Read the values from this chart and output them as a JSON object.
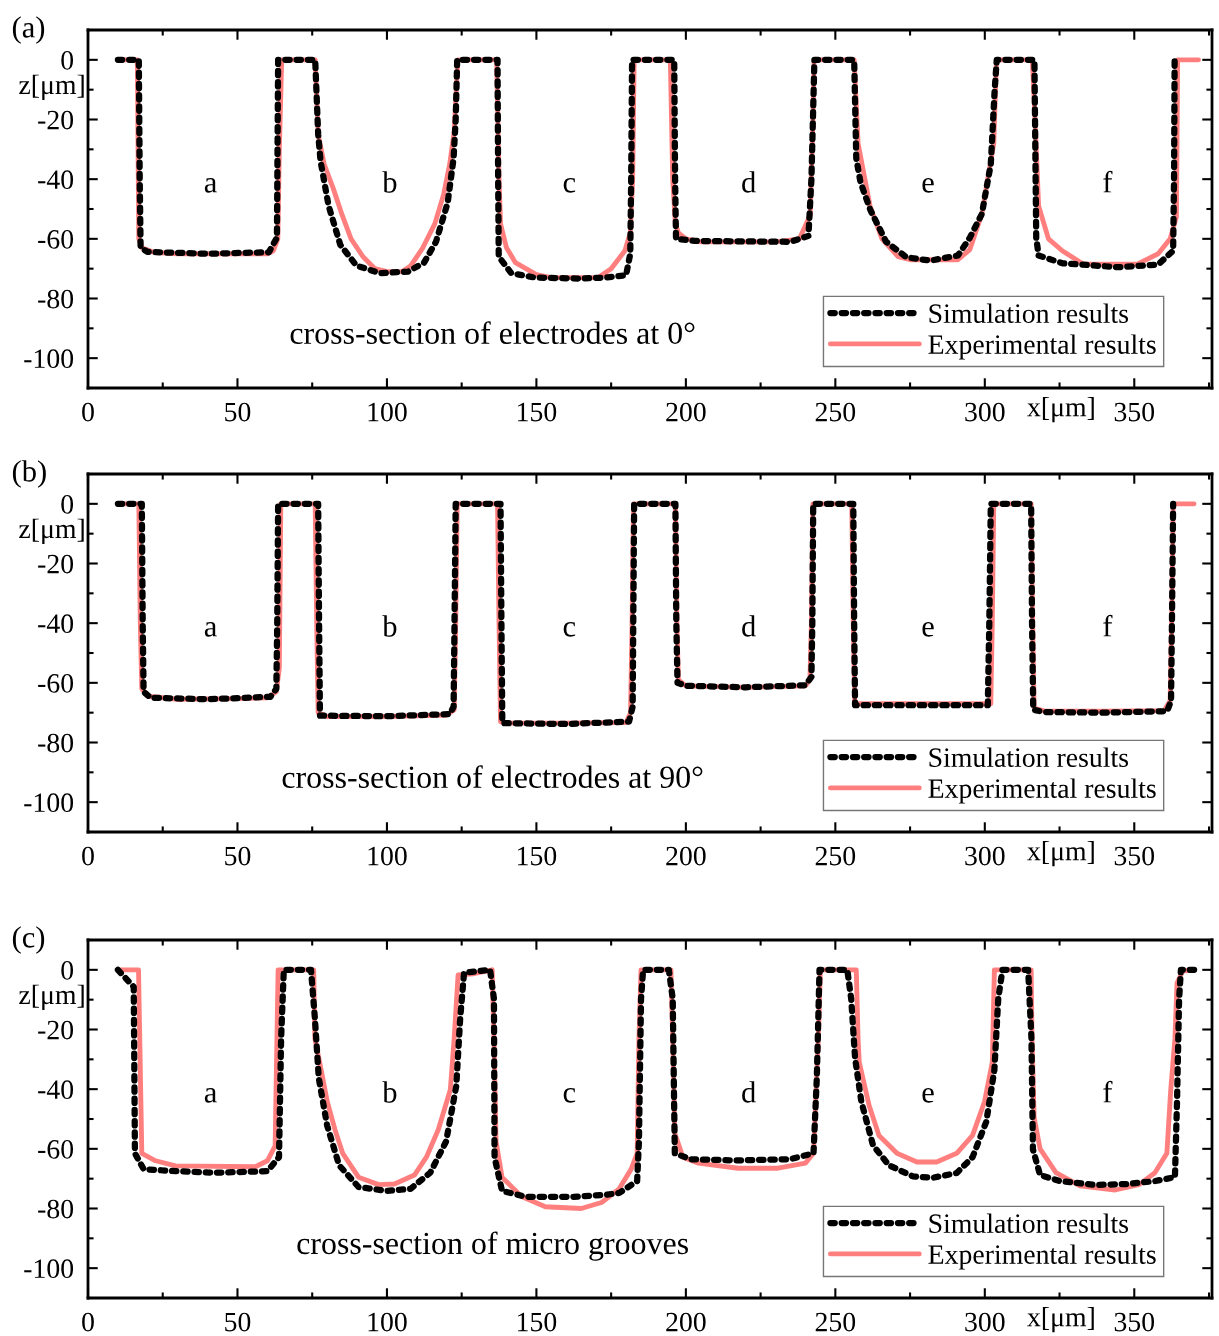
{
  "chart_data": [
    {
      "type": "line",
      "title": "(a)",
      "xlabel": "x[μm]",
      "ylabel": "z[μm]",
      "xlim": [
        0,
        376
      ],
      "ylim": [
        -110,
        10
      ],
      "xticks": [
        0,
        50,
        100,
        150,
        200,
        250,
        300,
        350
      ],
      "yticks": [
        0,
        -20,
        -40,
        -60,
        -80,
        -100
      ],
      "grid": false,
      "legend": "bottom right",
      "annotations": [
        "cross-section of electrodes at 0°",
        "a",
        "b",
        "c",
        "d",
        "e",
        "f"
      ],
      "series": [
        {
          "name": "Simulation results",
          "color": "#000000",
          "line_style": "dotted",
          "x": [
            10,
            17,
            17.3,
            17.6,
            20,
            40,
            60.5,
            63.2,
            63.4,
            63.6,
            76,
            77,
            77.8,
            80.5,
            84.4,
            89.8,
            97.7,
            107,
            112.4,
            116.4,
            120.3,
            122.3,
            123,
            123.5,
            137,
            137.2,
            137.4,
            141.6,
            149.6,
            164,
            172.9,
            180,
            181.4,
            181.7,
            182,
            196.1,
            196.4,
            196.7,
            203,
            235,
            241,
            242,
            243,
            256.3,
            257,
            258.4,
            261.7,
            267,
            273.8,
            281.8,
            291,
            295,
            299,
            302,
            303.3,
            304,
            316.6,
            317,
            317.2,
            318,
            326,
            344.6,
            358,
            363,
            363.3,
            363.5
          ],
          "values": [
            0,
            0,
            -40,
            -63,
            -64.4,
            -65,
            -64.5,
            -59.6,
            -30,
            0,
            0,
            -25,
            -34,
            -49,
            -62,
            -69,
            -71.5,
            -71,
            -68,
            -61,
            -48,
            -33,
            -20,
            0,
            0,
            -40,
            -66,
            -71.5,
            -73,
            -73.3,
            -73,
            -72.2,
            -65,
            -40,
            0,
            0,
            -40,
            -60,
            -60.7,
            -61,
            -59,
            -40,
            0,
            0,
            -33,
            -41,
            -50.3,
            -61,
            -66.2,
            -67.3,
            -65.6,
            -59.6,
            -51.7,
            -35,
            -10,
            0,
            0,
            -40,
            -59.6,
            -65.6,
            -68.2,
            -69.5,
            -68.6,
            -64,
            -40,
            0
          ]
        },
        {
          "name": "Experimental results",
          "color": "#ff7f7f",
          "line_style": "solid",
          "x": [
            10,
            16.5,
            17,
            18,
            22,
            30,
            60,
            62,
            63.5,
            64,
            64.8,
            76,
            77,
            79,
            82,
            85,
            88,
            92,
            96,
            100,
            105,
            108,
            112,
            116,
            119,
            121,
            122.5,
            123.7,
            136.7,
            137.5,
            138,
            140,
            143,
            150,
            155,
            165,
            170.7,
            175,
            179.6,
            181.4,
            182.2,
            182.7,
            194.8,
            195.6,
            196.5,
            197.5,
            200,
            205,
            230,
            238,
            241.6,
            242.5,
            242.9,
            256.3,
            257.6,
            261.6,
            265.6,
            271,
            275,
            291,
            295,
            299,
            303,
            303.9,
            315.9,
            316.8,
            318,
            321.3,
            325.9,
            333,
            351,
            358,
            362,
            364.1,
            364.5,
            371.5
          ],
          "values": [
            0,
            0,
            -60,
            -63,
            -64.5,
            -65,
            -65,
            -64,
            -60,
            -30,
            0,
            0,
            -25,
            -35,
            -43,
            -52,
            -60,
            -66,
            -70,
            -71,
            -71,
            -69,
            -63,
            -55,
            -45,
            -35,
            -24,
            0,
            0,
            -40,
            -55,
            -63,
            -68,
            -72,
            -73,
            -73,
            -73,
            -70,
            -64,
            -58,
            -40,
            0,
            0,
            -40,
            -55,
            -58,
            -60,
            -61,
            -61,
            -60,
            -52,
            -20,
            0,
            0,
            -28,
            -49,
            -60,
            -66,
            -67,
            -67,
            -63.6,
            -51.7,
            -28,
            0,
            0,
            -20,
            -49,
            -60,
            -64,
            -68.5,
            -68.5,
            -65,
            -60,
            -52.6,
            0,
            0
          ]
        }
      ]
    },
    {
      "type": "line",
      "title": "(b)",
      "xlabel": "x[μm]",
      "ylabel": "z[μm]",
      "xlim": [
        0,
        376
      ],
      "ylim": [
        -110,
        10
      ],
      "xticks": [
        0,
        50,
        100,
        150,
        200,
        250,
        300,
        350
      ],
      "yticks": [
        0,
        -20,
        -40,
        -60,
        -80,
        -100
      ],
      "grid": false,
      "legend": "bottom right",
      "annotations": [
        "cross-section of electrodes at 90°",
        "a",
        "b",
        "c",
        "d",
        "e",
        "f"
      ],
      "series": [
        {
          "name": "Simulation results",
          "color": "#000000",
          "line_style": "dotted",
          "x": [
            10,
            18,
            18.3,
            18.6,
            21,
            40,
            61,
            63,
            63.3,
            63.6,
            77,
            77.3,
            77.6,
            100,
            121,
            122.3,
            122.6,
            123,
            138,
            138.3,
            138.6,
            160,
            181,
            182.2,
            182.4,
            182.7,
            196.5,
            196.8,
            197.2,
            200,
            220,
            240,
            242,
            242.3,
            242.6,
            256,
            256.3,
            256.6,
            280,
            301,
            301.5,
            302,
            315.5,
            315.8,
            316.2,
            320,
            340,
            361,
            362.3,
            362.6,
            363
          ],
          "values": [
            0,
            0,
            -40,
            -63,
            -65,
            -65.5,
            -64.7,
            -62,
            -40,
            0,
            0,
            -40,
            -71,
            -71.2,
            -70.5,
            -68,
            -40,
            0,
            0,
            -40,
            -73.5,
            -73.8,
            -73,
            -68,
            -40,
            0,
            0,
            -40,
            -60,
            -61,
            -61.5,
            -60.8,
            -58,
            -40,
            0,
            0,
            -40,
            -67.5,
            -67.5,
            -67.5,
            -40,
            0,
            0,
            -40,
            -69,
            -69.8,
            -70,
            -69.5,
            -66,
            -40,
            0
          ]
        },
        {
          "name": "Experimental results",
          "color": "#ff7f7f",
          "line_style": "solid",
          "x": [
            10,
            17,
            17.5,
            18,
            20,
            30,
            50,
            60,
            63,
            64,
            64.5,
            76,
            76.5,
            77,
            80,
            100,
            120,
            122.5,
            123,
            123.5,
            137,
            137.5,
            138,
            140,
            160,
            180,
            181.5,
            182,
            182.5,
            196.5,
            197,
            197.5,
            200,
            220,
            240,
            241.5,
            242,
            242.5,
            255.5,
            256,
            256.5,
            280,
            302,
            302.5,
            303,
            315.5,
            316,
            316.5,
            320,
            340,
            360,
            362,
            362.5,
            363,
            370
          ],
          "values": [
            0,
            0,
            -40,
            -62,
            -64.5,
            -65.5,
            -65.3,
            -65,
            -63,
            -55,
            0,
            0,
            -40,
            -70,
            -71.3,
            -71.3,
            -70.8,
            -69,
            -40,
            0,
            0,
            -40,
            -73,
            -73.5,
            -73.5,
            -73.3,
            -70,
            -40,
            0,
            0,
            -40,
            -59,
            -61,
            -61.5,
            -61,
            -59,
            -40,
            0,
            0,
            -40,
            -67,
            -67,
            -67,
            -40,
            0,
            0,
            -40,
            -68.5,
            -69.5,
            -69.5,
            -69.3,
            -66,
            -40,
            0,
            0
          ]
        }
      ]
    },
    {
      "type": "line",
      "title": "(c)",
      "xlabel": "x[μm]",
      "ylabel": "z[μm]",
      "xlim": [
        0,
        376
      ],
      "ylim": [
        -110,
        10
      ],
      "xticks": [
        0,
        50,
        100,
        150,
        200,
        250,
        300,
        350
      ],
      "yticks": [
        0,
        -20,
        -40,
        -60,
        -80,
        -100
      ],
      "grid": false,
      "legend": "bottom right",
      "annotations": [
        "cross-section of micro grooves",
        "a",
        "b",
        "c",
        "d",
        "e",
        "f"
      ],
      "series": [
        {
          "name": "Simulation results",
          "color": "#000000",
          "line_style": "dotted",
          "x": [
            10,
            15.3,
            15.7,
            18.6,
            29.3,
            42.6,
            60,
            63.9,
            64.6,
            65.5,
            74.6,
            75.9,
            77.2,
            80,
            84,
            90.5,
            99.9,
            107.9,
            114.5,
            119.8,
            123.2,
            124.5,
            125.8,
            134.5,
            135.8,
            136,
            138.5,
            146.5,
            162.4,
            173,
            177.7,
            183.7,
            184.3,
            185,
            185.7,
            194.3,
            195.6,
            196.3,
            201.6,
            217.5,
            234.8,
            242.7,
            243.8,
            244.7,
            254,
            255.3,
            256.6,
            258.7,
            262.6,
            267.9,
            275.9,
            282.6,
            290.6,
            295.9,
            300.5,
            303.2,
            304.5,
            305.9,
            314.5,
            315.6,
            316.1,
            318.5,
            325.1,
            337.1,
            347.6,
            357,
            363.6,
            364.3,
            365,
            365.6,
            370.2
          ],
          "values": [
            0,
            -5.7,
            -61.5,
            -66.8,
            -67.5,
            -68,
            -67.5,
            -62.8,
            -23,
            0,
            0,
            -16.3,
            -36.3,
            -52.2,
            -65.5,
            -72.8,
            -74.1,
            -73.4,
            -68,
            -57.5,
            -38.9,
            -16.3,
            -1,
            0,
            -9.7,
            -62.8,
            -74.1,
            -76.1,
            -76.1,
            -75.4,
            -74.8,
            -70.8,
            -57.5,
            -9.7,
            0,
            0,
            -9.7,
            -61.5,
            -63.5,
            -63.9,
            -63.5,
            -61.5,
            -36.3,
            0,
            0,
            -9.7,
            -29.6,
            -44.2,
            -58.8,
            -65.5,
            -69.2,
            -69.7,
            -68.1,
            -62.8,
            -50.9,
            -33.6,
            -9.7,
            0,
            0,
            -23,
            -60.2,
            -68.8,
            -70.8,
            -72.1,
            -71.8,
            -70.8,
            -69.5,
            -44.2,
            -9.7,
            0,
            0
          ]
        },
        {
          "name": "Experimental results",
          "color": "#ff7f7f",
          "line_style": "solid",
          "x": [
            10,
            16.9,
            18,
            22.6,
            29.3,
            56,
            60,
            62.6,
            63.2,
            63.6,
            75.5,
            75.9,
            78,
            80,
            82.6,
            85.2,
            90.5,
            97.2,
            102.5,
            109.2,
            113.2,
            117.2,
            121.2,
            122.5,
            123.8,
            129,
            135.2,
            135.8,
            136.5,
            138.5,
            145,
            153,
            165,
            171.8,
            177.7,
            181.7,
            183.7,
            184.3,
            185,
            195,
            195.6,
            196.3,
            199,
            204.2,
            217.5,
            230.8,
            240,
            242.7,
            244.3,
            245,
            257,
            257.6,
            258,
            261.3,
            264.6,
            270.6,
            277.3,
            283.9,
            290.6,
            295.9,
            299.9,
            302.5,
            303.2,
            315.5,
            315.8,
            316.5,
            318.5,
            323.8,
            331.8,
            343.6,
            351.6,
            356.9,
            360.9,
            362.2,
            363.6,
            364.3,
            366.2,
            370.2
          ],
          "values": [
            0,
            0,
            -61.5,
            -64,
            -65.7,
            -66,
            -64,
            -59,
            -23,
            0,
            0,
            -23,
            -33.6,
            -44,
            -53.5,
            -61.5,
            -69.5,
            -72,
            -71.8,
            -68.8,
            -62.8,
            -53.5,
            -40.2,
            -23,
            -1.7,
            -1.3,
            0,
            -23,
            -57.5,
            -69.5,
            -76,
            -79.4,
            -80,
            -78,
            -73.4,
            -66.8,
            -61.5,
            -23,
            0,
            0,
            -23,
            -54.8,
            -62.8,
            -64.8,
            -66.5,
            -66.5,
            -64.8,
            -61.5,
            -23,
            0,
            0,
            -23,
            -31,
            -45.5,
            -55.5,
            -61.5,
            -64.4,
            -64.4,
            -61.5,
            -55.5,
            -44.2,
            -31,
            0,
            0,
            -23,
            -49.5,
            -60,
            -68,
            -72.4,
            -73.8,
            -72,
            -68,
            -61.5,
            -40.2,
            -23,
            -4.4,
            -0.4,
            0
          ]
        }
      ]
    }
  ]
}
